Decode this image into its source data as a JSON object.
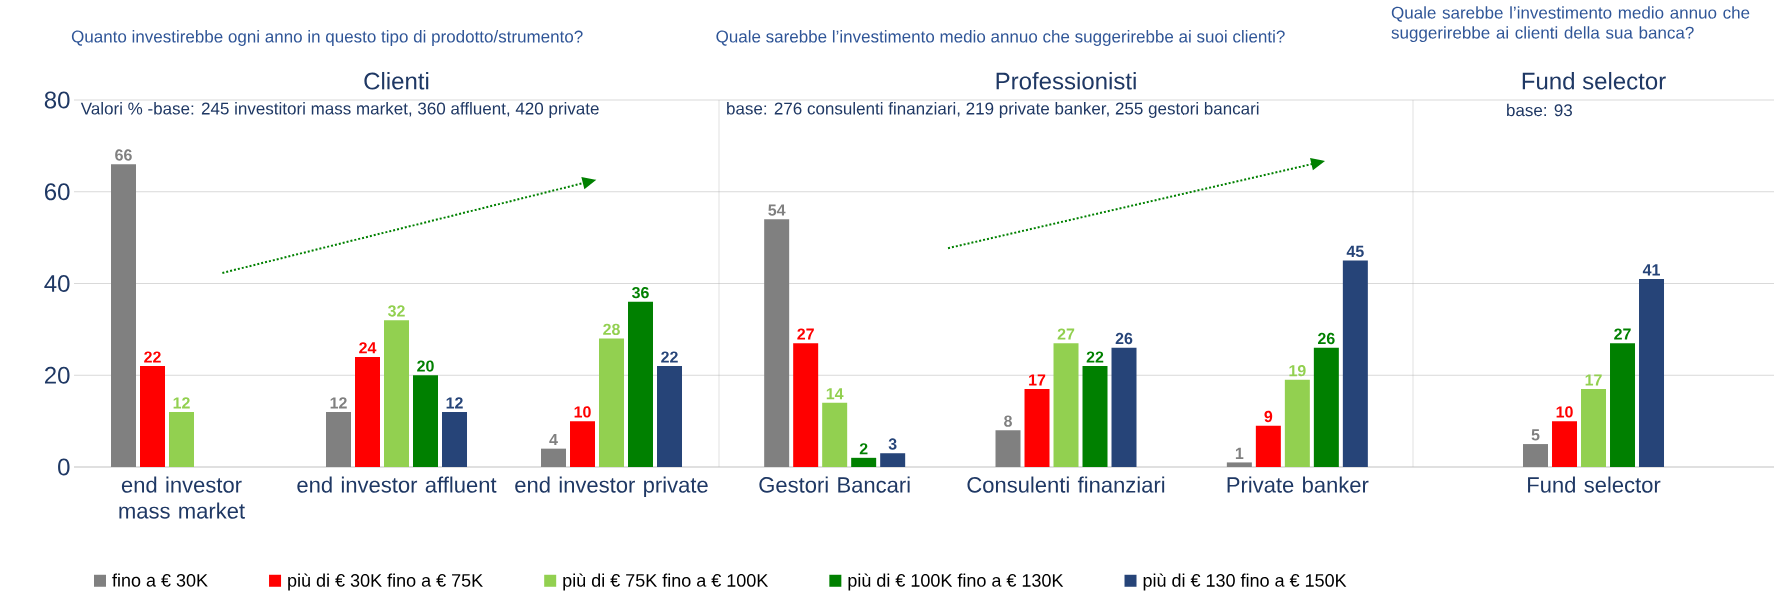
{
  "chart_data": [
    {
      "type": "bar",
      "title": "Clienti",
      "subtitle": "Valori % -base: 245 investitori mass market, 360 affluent, 420 private",
      "annotations": [
        "Quanto investirebbe ogni anno in questo tipo di prodotto/strumento?"
      ],
      "categories": [
        "end investor mass market",
        "end investor affluent",
        "end investor private"
      ],
      "series": [
        {
          "name": "fino a € 30K",
          "color": "#808080",
          "values": [
            66,
            12,
            4
          ]
        },
        {
          "name": "più di € 30K fino a € 75K",
          "color": "#ff0000",
          "values": [
            22,
            24,
            10
          ]
        },
        {
          "name": "più di € 75K fino a € 100K",
          "color": "#92d050",
          "values": [
            12,
            32,
            28
          ]
        },
        {
          "name": "più di € 100K fino a € 130K",
          "color": "#008000",
          "values": [
            null,
            20,
            36
          ]
        },
        {
          "name": "più di € 130 fino a € 150K",
          "color": "#264478",
          "values": [
            null,
            12,
            22
          ]
        }
      ],
      "ylim": [
        0,
        80
      ],
      "yticks": [
        0,
        20,
        40,
        60,
        80
      ],
      "grid": "y",
      "legend": "bottom",
      "data_labels": true
    },
    {
      "type": "bar",
      "title": "Professionisti",
      "subtitle": "base: 276 consulenti finanziari, 219 private banker, 255 gestori bancari",
      "annotations": [
        "Quale sarebbe l’investimento medio annuo che suggerirebbe ai suoi clienti?"
      ],
      "categories": [
        "Gestori Bancari",
        "Consulenti finanziari",
        "Private banker"
      ],
      "series": [
        {
          "color": "#808080",
          "values": [
            54,
            8,
            1
          ]
        },
        {
          "color": "#ff0000",
          "values": [
            27,
            17,
            9
          ]
        },
        {
          "color": "#92d050",
          "values": [
            14,
            27,
            19
          ]
        },
        {
          "color": "#008000",
          "values": [
            2,
            22,
            26
          ]
        },
        {
          "color": "#264478",
          "values": [
            3,
            26,
            45
          ]
        }
      ],
      "ylim": [
        0,
        80
      ],
      "yticks": [
        0,
        20,
        40,
        60,
        80
      ],
      "grid": "y",
      "tick_labels": "x",
      "data_labels": true
    },
    {
      "type": "bar",
      "title": "Fund selector",
      "subtitle": "base: 93",
      "annotations": [
        "Quale sarebbe l’investimento medio annuo che suggerirebbe ai clienti della sua banca?"
      ],
      "categories": [
        "Fund selector"
      ],
      "series": [
        {
          "color": "#808080",
          "values": [
            5
          ]
        },
        {
          "color": "#ff0000",
          "values": [
            10
          ]
        },
        {
          "color": "#92d050",
          "values": [
            17
          ]
        },
        {
          "color": "#008000",
          "values": [
            27
          ]
        },
        {
          "color": "#264478",
          "values": [
            41
          ]
        }
      ],
      "ylim": [
        0,
        80
      ],
      "yticks": [
        0,
        20,
        40,
        60,
        80
      ],
      "grid": "y",
      "tick_labels": "x",
      "data_labels": true
    }
  ]
}
